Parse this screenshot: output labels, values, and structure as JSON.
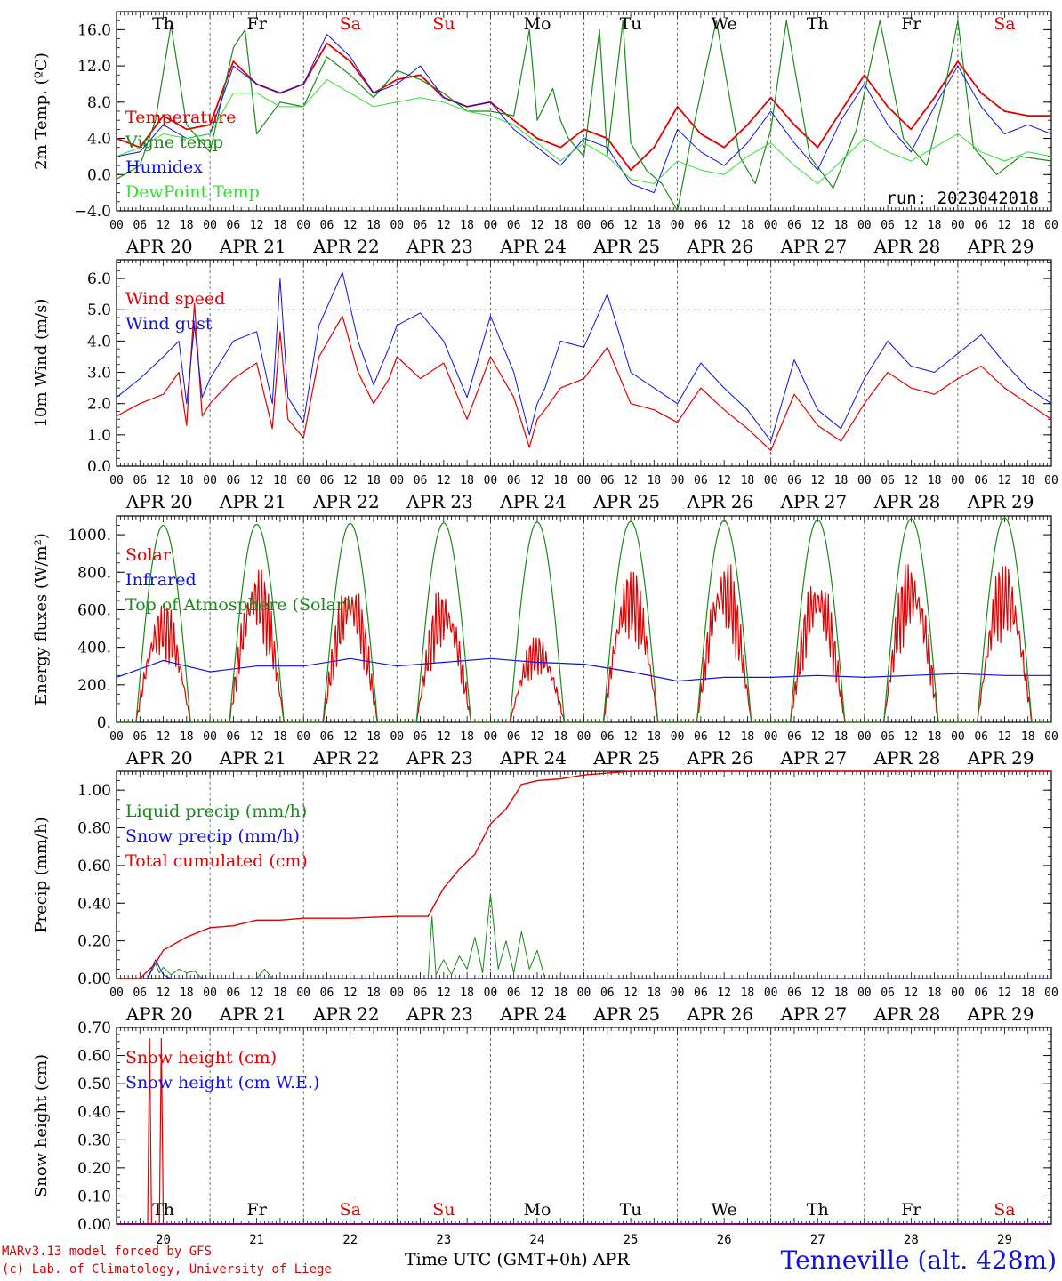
{
  "run_label": "run: 2023042018",
  "days": [
    "APR 20",
    "APR 21",
    "APR 22",
    "APR 23",
    "APR 24",
    "APR 25",
    "APR 26",
    "APR 27",
    "APR 28",
    "APR 29"
  ],
  "day_numbers": [
    "20",
    "21",
    "22",
    "23",
    "24",
    "25",
    "26",
    "27",
    "28",
    "29"
  ],
  "weekdays": [
    "Th",
    "Fr",
    "Sa",
    "Su",
    "Mo",
    "Tu",
    "We",
    "Th",
    "Fr",
    "Sa"
  ],
  "weekend_flags": [
    false,
    false,
    true,
    true,
    false,
    false,
    false,
    false,
    false,
    true
  ],
  "hour_ticks": [
    "00",
    "06",
    "12",
    "18"
  ],
  "hour_end": "00",
  "month_label": "APR",
  "x_title": "Time UTC (GMT+0h)",
  "footer": {
    "model": "MARv3.13 model forced by GFS",
    "credit": "(c) Lab. of Climatology, University of Liege",
    "station": "Tenneville (alt. 428m)"
  },
  "colors": {
    "red": "#e00000",
    "green": "#1a8a1a",
    "blue": "#1010e0",
    "lime": "#30e030",
    "grid": "#444444"
  },
  "chart_data": [
    {
      "type": "line",
      "ylabel": "2m Temp. (ºC)",
      "ylim": [
        -4,
        18
      ],
      "yticks": [
        -4,
        0,
        4,
        8,
        12,
        16
      ],
      "ytick_labels": [
        "−4.0",
        "0.0",
        "4.0",
        "8.0",
        "12.0",
        "16.0"
      ],
      "x_unit": "hours since APR 20 00 UTC",
      "series": [
        {
          "name": "Temperature",
          "color": "red",
          "width": 1.8,
          "x": [
            0,
            6,
            12,
            18,
            24,
            30,
            36,
            42,
            48,
            54,
            60,
            66,
            72,
            78,
            84,
            90,
            96,
            102,
            108,
            114,
            120,
            126,
            132,
            138,
            144,
            150,
            156,
            162,
            168,
            174,
            180,
            186,
            192,
            198,
            204,
            210,
            216,
            222,
            228,
            234,
            240
          ],
          "y": [
            4.0,
            3.0,
            6.5,
            5.0,
            5.5,
            12.5,
            10.0,
            9.0,
            10.0,
            14.5,
            12.5,
            9.0,
            10.5,
            11.0,
            8.5,
            7.5,
            8.0,
            6.0,
            4.0,
            3.0,
            5.0,
            4.0,
            0.5,
            3.0,
            7.5,
            4.5,
            3.0,
            5.5,
            8.5,
            5.5,
            3.0,
            7.0,
            11.0,
            7.5,
            5.0,
            8.5,
            12.5,
            9.0,
            7.0,
            6.5,
            6.5
          ]
        },
        {
          "name": "Vigne temp",
          "color": "green",
          "width": 1.2,
          "x": [
            0,
            6,
            10,
            14,
            18,
            24,
            30,
            33,
            36,
            42,
            48,
            54,
            60,
            66,
            72,
            78,
            84,
            90,
            96,
            102,
            106,
            108,
            112,
            114,
            116,
            120,
            124,
            126,
            130,
            132,
            136,
            140,
            144,
            148,
            154,
            160,
            164,
            168,
            172,
            178,
            184,
            190,
            196,
            202,
            208,
            212,
            216,
            220,
            226,
            232,
            240
          ],
          "y": [
            -0.5,
            1.0,
            6.0,
            16.5,
            5.5,
            2.5,
            14.0,
            16.0,
            4.5,
            8.0,
            7.5,
            13.0,
            11.0,
            8.5,
            11.5,
            10.5,
            9.0,
            7.0,
            7.0,
            6.5,
            16.0,
            6.0,
            9.5,
            6.0,
            4.0,
            2.0,
            16.0,
            2.0,
            17.0,
            3.5,
            0.5,
            -1.0,
            -4.0,
            5.0,
            17.0,
            2.0,
            -1.0,
            5.0,
            17.0,
            2.0,
            -1.5,
            5.0,
            17.0,
            4.0,
            1.0,
            8.0,
            17.0,
            3.0,
            0.0,
            2.0,
            1.5
          ]
        },
        {
          "name": "Humidex",
          "color": "blue",
          "width": 1.0,
          "x": [
            0,
            6,
            12,
            18,
            24,
            30,
            36,
            42,
            48,
            54,
            60,
            66,
            72,
            78,
            84,
            90,
            96,
            102,
            108,
            114,
            120,
            126,
            132,
            138,
            144,
            150,
            156,
            162,
            168,
            174,
            180,
            186,
            192,
            198,
            204,
            210,
            216,
            222,
            228,
            234,
            240
          ],
          "y": [
            2.0,
            2.5,
            5.5,
            4.0,
            4.5,
            12.0,
            10.0,
            9.0,
            10.0,
            15.5,
            13.0,
            9.0,
            10.0,
            12.0,
            8.5,
            7.5,
            8.0,
            5.0,
            3.0,
            1.0,
            4.0,
            3.0,
            -1.0,
            -2.0,
            5.0,
            2.5,
            1.0,
            3.5,
            7.0,
            3.5,
            0.5,
            6.0,
            10.0,
            5.5,
            2.5,
            7.5,
            12.0,
            7.5,
            4.5,
            5.5,
            4.5
          ]
        },
        {
          "name": "DewPoint Temp",
          "color": "lime",
          "width": 1.0,
          "x": [
            0,
            6,
            12,
            18,
            24,
            30,
            36,
            42,
            48,
            54,
            60,
            66,
            72,
            78,
            84,
            90,
            96,
            102,
            108,
            114,
            120,
            126,
            132,
            138,
            144,
            150,
            156,
            162,
            168,
            174,
            180,
            186,
            192,
            198,
            204,
            210,
            216,
            222,
            228,
            234,
            240
          ],
          "y": [
            2.0,
            3.0,
            4.5,
            4.0,
            4.5,
            9.0,
            9.0,
            7.5,
            7.5,
            10.5,
            9.0,
            7.5,
            8.0,
            8.5,
            8.0,
            7.0,
            6.5,
            5.5,
            3.5,
            1.5,
            3.5,
            2.0,
            -0.5,
            -1.0,
            1.5,
            0.5,
            0.0,
            2.0,
            3.5,
            1.0,
            -1.0,
            1.5,
            4.0,
            2.5,
            1.5,
            3.0,
            4.5,
            2.5,
            1.5,
            2.5,
            2.0
          ]
        }
      ]
    },
    {
      "type": "line",
      "ylabel": "10m Wind (m/s)",
      "ylim": [
        0,
        6.6
      ],
      "yticks": [
        0,
        1,
        2,
        3,
        4,
        5,
        6
      ],
      "ytick_labels": [
        "0.0",
        "1.0",
        "2.0",
        "3.0",
        "4.0",
        "5.0",
        "6.0"
      ],
      "dashed_y": 5.0,
      "series": [
        {
          "name": "Wind speed",
          "color": "red",
          "width": 1.2,
          "x": [
            0,
            6,
            12,
            16,
            18,
            20,
            22,
            24,
            30,
            36,
            40,
            42,
            44,
            48,
            52,
            58,
            62,
            66,
            70,
            72,
            78,
            84,
            90,
            96,
            102,
            106,
            108,
            110,
            114,
            120,
            126,
            132,
            138,
            144,
            150,
            156,
            162,
            168,
            174,
            180,
            186,
            192,
            198,
            204,
            210,
            216,
            222,
            228,
            234,
            240
          ],
          "y": [
            1.6,
            2.0,
            2.3,
            3.0,
            1.3,
            5.2,
            1.6,
            2.0,
            2.8,
            3.3,
            1.2,
            4.3,
            1.5,
            0.9,
            3.5,
            4.8,
            3.0,
            2.0,
            2.8,
            3.5,
            2.8,
            3.3,
            1.5,
            3.5,
            2.2,
            0.6,
            1.5,
            1.8,
            2.5,
            2.8,
            3.8,
            2.0,
            1.8,
            1.4,
            2.5,
            1.8,
            1.2,
            0.5,
            2.3,
            1.3,
            0.8,
            2.0,
            3.0,
            2.5,
            2.3,
            2.8,
            3.2,
            2.5,
            2.0,
            1.5
          ]
        },
        {
          "name": "Wind gust",
          "color": "blue",
          "width": 1.0,
          "x": [
            0,
            6,
            12,
            16,
            18,
            20,
            22,
            24,
            30,
            36,
            40,
            42,
            44,
            48,
            52,
            58,
            62,
            66,
            70,
            72,
            78,
            84,
            90,
            96,
            102,
            106,
            108,
            110,
            114,
            120,
            126,
            132,
            138,
            144,
            150,
            156,
            162,
            168,
            174,
            180,
            186,
            192,
            198,
            204,
            210,
            216,
            222,
            228,
            234,
            240
          ],
          "y": [
            2.2,
            2.8,
            3.5,
            4.0,
            2.0,
            4.5,
            2.2,
            2.8,
            4.0,
            4.3,
            2.0,
            6.0,
            2.2,
            1.4,
            4.5,
            6.2,
            4.0,
            2.6,
            3.8,
            4.5,
            4.9,
            4.0,
            2.2,
            4.8,
            3.0,
            1.0,
            2.0,
            2.5,
            4.0,
            3.8,
            5.5,
            3.0,
            2.5,
            2.0,
            3.3,
            2.5,
            1.8,
            0.8,
            3.4,
            1.8,
            1.2,
            2.8,
            4.0,
            3.2,
            3.0,
            3.6,
            4.2,
            3.3,
            2.5,
            2.0
          ]
        }
      ]
    },
    {
      "type": "line",
      "ylabel": "Energy fluxes (W/m²)",
      "ylim": [
        0,
        1100
      ],
      "yticks": [
        0,
        200,
        400,
        600,
        800,
        1000
      ],
      "ytick_labels": [
        "0.",
        "200.",
        "400.",
        "600.",
        "800.",
        "1000."
      ],
      "series": [
        {
          "name": "Solar",
          "color": "red",
          "width": 1.2,
          "peaks": [
            620,
            810,
            750,
            690,
            450,
            800,
            840,
            780,
            840,
            830
          ]
        },
        {
          "name": "Infrared",
          "color": "blue",
          "width": 1.2,
          "x": [
            0,
            12,
            24,
            36,
            48,
            60,
            72,
            84,
            96,
            108,
            120,
            132,
            144,
            156,
            168,
            180,
            192,
            204,
            216,
            228,
            240
          ],
          "y": [
            240,
            330,
            270,
            300,
            300,
            340,
            300,
            320,
            340,
            320,
            310,
            270,
            220,
            240,
            240,
            250,
            240,
            250,
            260,
            250,
            250
          ]
        },
        {
          "name": "Top of Atmosphere (Solar)",
          "color": "green",
          "width": 1.2,
          "peaks": [
            1050,
            1055,
            1060,
            1063,
            1067,
            1070,
            1075,
            1080,
            1085,
            1090
          ]
        }
      ],
      "day_window_hours": [
        5,
        19
      ]
    },
    {
      "type": "line",
      "ylabel": "Precip (mm/h)",
      "ylim": [
        0,
        1.1
      ],
      "yticks": [
        0,
        0.2,
        0.4,
        0.6,
        0.8,
        1.0
      ],
      "ytick_labels": [
        "0.00",
        "0.20",
        "0.40",
        "0.60",
        "0.80",
        "1.00"
      ],
      "series": [
        {
          "name": "Liquid precip (mm/h)",
          "color": "green",
          "width": 1.0,
          "x": [
            0,
            8,
            10,
            11,
            12,
            14,
            16,
            18,
            20,
            22,
            24,
            36,
            38,
            40,
            80,
            81,
            82,
            84,
            86,
            88,
            90,
            92,
            94,
            96,
            98,
            100,
            102,
            104,
            106,
            108,
            110,
            240
          ],
          "y": [
            0,
            0,
            0.08,
            0.03,
            0.06,
            0.02,
            0.05,
            0.03,
            0.04,
            0.0,
            0,
            0,
            0.05,
            0,
            0,
            0.33,
            0.02,
            0.1,
            0.02,
            0.12,
            0.05,
            0.22,
            0.03,
            0.45,
            0.05,
            0.2,
            0.03,
            0.25,
            0.05,
            0.15,
            0,
            0
          ]
        },
        {
          "name": "Snow precip (mm/h)",
          "color": "blue",
          "width": 1.0,
          "x": [
            0,
            8,
            10,
            12,
            14,
            240
          ],
          "y": [
            0,
            0,
            0.1,
            0.02,
            0,
            0
          ]
        },
        {
          "name": "Total cumulated (cm)",
          "color": "red",
          "width": 1.4,
          "x": [
            0,
            6,
            10,
            12,
            18,
            24,
            30,
            36,
            42,
            48,
            60,
            72,
            80,
            84,
            88,
            92,
            96,
            100,
            104,
            108,
            114,
            120,
            126,
            132,
            240
          ],
          "y": [
            0,
            0,
            0.08,
            0.15,
            0.22,
            0.27,
            0.28,
            0.31,
            0.31,
            0.32,
            0.32,
            0.33,
            0.33,
            0.48,
            0.58,
            0.66,
            0.82,
            0.9,
            1.03,
            1.05,
            1.06,
            1.08,
            1.09,
            1.1,
            1.1
          ]
        }
      ]
    },
    {
      "type": "line",
      "ylabel": "Snow height (cm)",
      "ylim": [
        0,
        0.7
      ],
      "yticks": [
        0,
        0.1,
        0.2,
        0.3,
        0.4,
        0.5,
        0.6,
        0.7
      ],
      "ytick_labels": [
        "0.00",
        "0.10",
        "0.20",
        "0.30",
        "0.40",
        "0.50",
        "0.60",
        "0.70"
      ],
      "series": [
        {
          "name": "Snow height (cm)",
          "color": "red",
          "width": 1.2,
          "x": [
            0,
            8,
            8.5,
            9,
            11,
            11.5,
            12,
            240
          ],
          "y": [
            0,
            0,
            0.66,
            0,
            0,
            0.66,
            0,
            0
          ]
        },
        {
          "name": "Snow height (cm W.E.)",
          "color": "blue",
          "width": 1.0,
          "x": [
            0,
            240
          ],
          "y": [
            0,
            0
          ]
        }
      ]
    }
  ]
}
